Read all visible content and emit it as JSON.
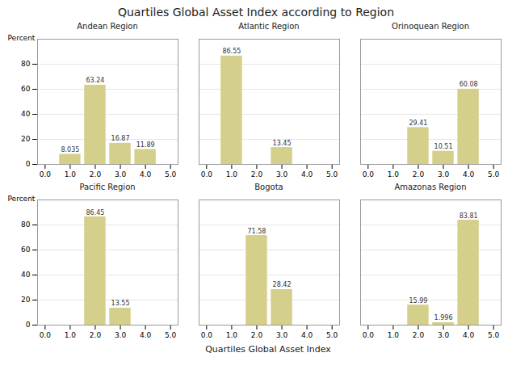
{
  "title": "Quartiles Global Asset Index according to Region",
  "xlabel": "Quartiles Global Asset Index",
  "chart_data": [
    {
      "type": "bar",
      "title": "Andean Region",
      "ylabel": "Percent",
      "x": [
        1,
        2,
        3,
        4
      ],
      "values": [
        8.035,
        63.24,
        16.87,
        11.89
      ],
      "color": "#d4cf8a",
      "xlim": [
        -0.3,
        5.3
      ],
      "ylim": [
        0,
        100
      ],
      "xticks": [
        0,
        1,
        2,
        3,
        4,
        5
      ],
      "yticks": [
        0,
        20,
        40,
        60,
        80
      ],
      "grid": true,
      "data_labels": true
    },
    {
      "type": "bar",
      "title": "Atlantic Region",
      "x": [
        1,
        3
      ],
      "values": [
        86.55,
        13.45
      ],
      "color": "#d4cf8a",
      "xlim": [
        -0.3,
        5.3
      ],
      "ylim": [
        0,
        100
      ],
      "xticks": [
        0,
        1,
        2,
        3,
        4,
        5
      ],
      "yticks": [
        0,
        20,
        40,
        60,
        80
      ],
      "grid": true,
      "data_labels": true,
      "tick_labels": "x"
    },
    {
      "type": "bar",
      "title": "Orinoquean Region",
      "x": [
        2,
        3,
        4
      ],
      "values": [
        29.41,
        10.51,
        60.08
      ],
      "color": "#d4cf8a",
      "xlim": [
        -0.3,
        5.3
      ],
      "ylim": [
        0,
        100
      ],
      "xticks": [
        0,
        1,
        2,
        3,
        4,
        5
      ],
      "yticks": [
        0,
        20,
        40,
        60,
        80
      ],
      "grid": true,
      "data_labels": true,
      "tick_labels": "x"
    },
    {
      "type": "bar",
      "title": "Pacific Region",
      "ylabel": "Percent",
      "x": [
        2,
        3
      ],
      "values": [
        86.45,
        13.55
      ],
      "color": "#d4cf8a",
      "xlim": [
        -0.3,
        5.3
      ],
      "ylim": [
        0,
        100
      ],
      "xticks": [
        0,
        1,
        2,
        3,
        4,
        5
      ],
      "yticks": [
        0,
        20,
        40,
        60,
        80
      ],
      "grid": true,
      "data_labels": true
    },
    {
      "type": "bar",
      "title": "Bogota",
      "x": [
        2,
        3
      ],
      "values": [
        71.58,
        28.42
      ],
      "color": "#d4cf8a",
      "xlim": [
        -0.3,
        5.3
      ],
      "ylim": [
        0,
        100
      ],
      "xticks": [
        0,
        1,
        2,
        3,
        4,
        5
      ],
      "yticks": [
        0,
        20,
        40,
        60,
        80
      ],
      "grid": true,
      "data_labels": true,
      "tick_labels": "x"
    },
    {
      "type": "bar",
      "title": "Amazonas Region",
      "x": [
        2,
        3,
        4
      ],
      "values": [
        15.99,
        1.996,
        83.81
      ],
      "color": "#d4cf8a",
      "xlim": [
        -0.3,
        5.3
      ],
      "ylim": [
        0,
        100
      ],
      "xticks": [
        0,
        1,
        2,
        3,
        4,
        5
      ],
      "yticks": [
        0,
        20,
        40,
        60,
        80
      ],
      "grid": true,
      "data_labels": true,
      "tick_labels": "x"
    }
  ]
}
